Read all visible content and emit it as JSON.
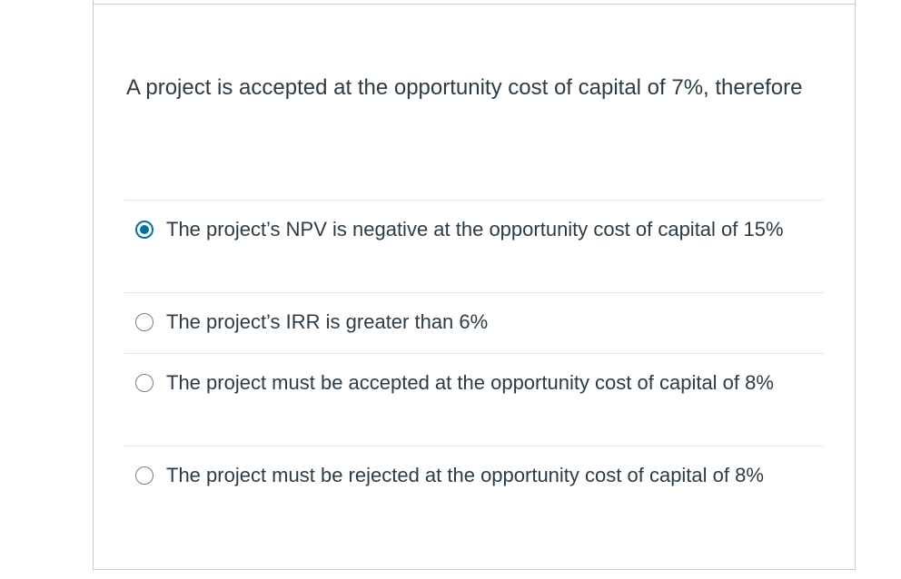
{
  "question": {
    "text": "A project is accepted at the opportunity cost of capital of 7%, therefore"
  },
  "answers": [
    {
      "text": "The project’s NPV is negative at the opportunity cost of capital of 15%",
      "selected": true
    },
    {
      "text": "The project’s IRR is greater than 6%",
      "selected": false
    },
    {
      "text": "The project must be accepted at the opportunity cost of capital of 8%",
      "selected": false
    },
    {
      "text": "The project must be rejected at the opportunity cost of capital of 8%",
      "selected": false
    }
  ],
  "colors": {
    "accent": "#0770a3",
    "text": "#2d3b45",
    "border": "#c7cdd1",
    "divider": "#e4e7e9"
  }
}
